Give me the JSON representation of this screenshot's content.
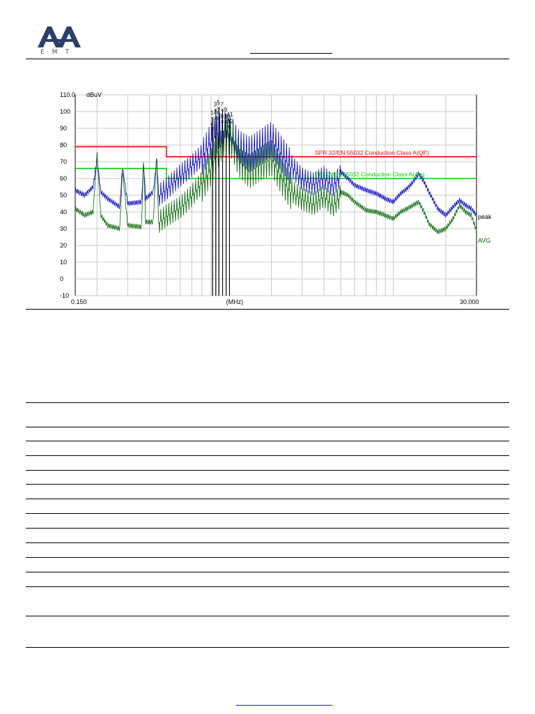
{
  "header": {
    "logo_text": "EMT",
    "logo_icon": "aa-emt-logo",
    "title": ""
  },
  "chart_data": {
    "type": "line",
    "title": "",
    "ylabel": "dBuV",
    "xlabel": "(MHz)",
    "x_scale": "log",
    "xlim": [
      0.15,
      30.0
    ],
    "ylim": [
      -10,
      110
    ],
    "x_min_label": "0.150",
    "x_max_label": "30.000",
    "y_ticks": [
      "110.0",
      "100",
      "90",
      "80",
      "70",
      "60",
      "50",
      "40",
      "30",
      "20",
      "10",
      "0",
      "-10"
    ],
    "grid": true,
    "limits": [
      {
        "name": "CISPR 32/EN 55032 Conduction Class A(QP)",
        "label_shown": "SPR 32/EN 55032 Conduction Class A(QP)",
        "color": "#ff0000",
        "points": [
          [
            0.15,
            79
          ],
          [
            0.5,
            79
          ],
          [
            0.5,
            73
          ],
          [
            30.0,
            73
          ]
        ]
      },
      {
        "name": "CISPR 32/EN 55032 Conduction Class A(Avg)",
        "label_shown": "PR 32/EN 55032 Conduction Class A(Avg",
        "color": "#00cc00",
        "points": [
          [
            0.15,
            66
          ],
          [
            0.5,
            66
          ],
          [
            0.5,
            60
          ],
          [
            30.0,
            60
          ]
        ]
      }
    ],
    "series": [
      {
        "name": "peak",
        "color": "#0000cc",
        "x": [
          0.15,
          0.17,
          0.19,
          0.2,
          0.21,
          0.23,
          0.27,
          0.28,
          0.3,
          0.36,
          0.37,
          0.38,
          0.42,
          0.44,
          0.45,
          0.5,
          0.6,
          0.7,
          0.8,
          0.9,
          1.0,
          1.1,
          1.2,
          1.3,
          1.5,
          1.7,
          2.0,
          2.3,
          2.6,
          3.0,
          3.5,
          4.0,
          4.5,
          5.0,
          5.5,
          6.0,
          7.0,
          8.0,
          9.0,
          10.0,
          11.0,
          12.0,
          13.0,
          14.0,
          15.0,
          16.0,
          18.0,
          20.0,
          22.0,
          24.0,
          26.0,
          28.0,
          30.0
        ],
        "y": [
          53,
          50,
          55,
          72,
          52,
          48,
          43,
          67,
          45,
          46,
          70,
          48,
          52,
          72,
          52,
          56,
          64,
          70,
          76,
          86,
          92,
          93,
          88,
          82,
          78,
          82,
          87,
          78,
          70,
          62,
          59,
          63,
          58,
          64,
          60,
          56,
          53,
          51,
          48,
          46,
          51,
          54,
          58,
          63,
          58,
          52,
          42,
          38,
          43,
          47,
          44,
          42,
          38
        ]
      },
      {
        "name": "AVG",
        "color": "#006600",
        "x": [
          0.15,
          0.17,
          0.19,
          0.2,
          0.21,
          0.23,
          0.27,
          0.28,
          0.3,
          0.36,
          0.37,
          0.38,
          0.42,
          0.44,
          0.45,
          0.5,
          0.6,
          0.7,
          0.8,
          0.9,
          1.0,
          1.1,
          1.2,
          1.3,
          1.5,
          1.7,
          2.0,
          2.3,
          2.6,
          3.0,
          3.5,
          4.0,
          4.5,
          5.0,
          5.5,
          6.0,
          7.0,
          8.0,
          9.0,
          10.0,
          11.0,
          12.0,
          13.0,
          14.0,
          15.0,
          16.0,
          18.0,
          20.0,
          22.0,
          24.0,
          26.0,
          28.0,
          30.0
        ],
        "y": [
          42,
          38,
          40,
          75,
          38,
          32,
          30,
          65,
          32,
          31,
          72,
          34,
          34,
          74,
          36,
          40,
          45,
          52,
          60,
          70,
          82,
          90,
          85,
          75,
          68,
          72,
          76,
          64,
          55,
          50,
          47,
          52,
          46,
          52,
          50,
          46,
          41,
          40,
          38,
          36,
          40,
          42,
          44,
          46,
          40,
          33,
          28,
          30,
          36,
          44,
          40,
          38,
          29
        ]
      }
    ],
    "markers": [
      {
        "label": "1",
        "x": 0.92,
        "y": 96
      },
      {
        "label": "2",
        "x": 0.92,
        "y": 90
      },
      {
        "label": "3",
        "x": 0.96,
        "y": 101
      },
      {
        "label": "4",
        "x": 0.96,
        "y": 96
      },
      {
        "label": "5",
        "x": 1.0,
        "y": 102
      },
      {
        "label": "6",
        "x": 1.0,
        "y": 96
      },
      {
        "label": "7",
        "x": 1.05,
        "y": 101
      },
      {
        "label": "8",
        "x": 1.05,
        "y": 94
      },
      {
        "label": "9",
        "x": 1.1,
        "y": 98
      },
      {
        "label": "10",
        "x": 1.1,
        "y": 94
      },
      {
        "label": "11",
        "x": 1.15,
        "y": 95
      },
      {
        "label": "12",
        "x": 1.15,
        "y": 91
      }
    ],
    "trace_labels": {
      "peak": "peak",
      "avg": "AVG"
    }
  },
  "table": {
    "rows": [
      "",
      "",
      "",
      "",
      "",
      "",
      "",
      "",
      "",
      "",
      "",
      "",
      "",
      ""
    ]
  },
  "footer": {
    "link_text": ""
  },
  "colors": {
    "logo_blue": "#2b3f6b",
    "footer_link": "#1a1aff"
  }
}
